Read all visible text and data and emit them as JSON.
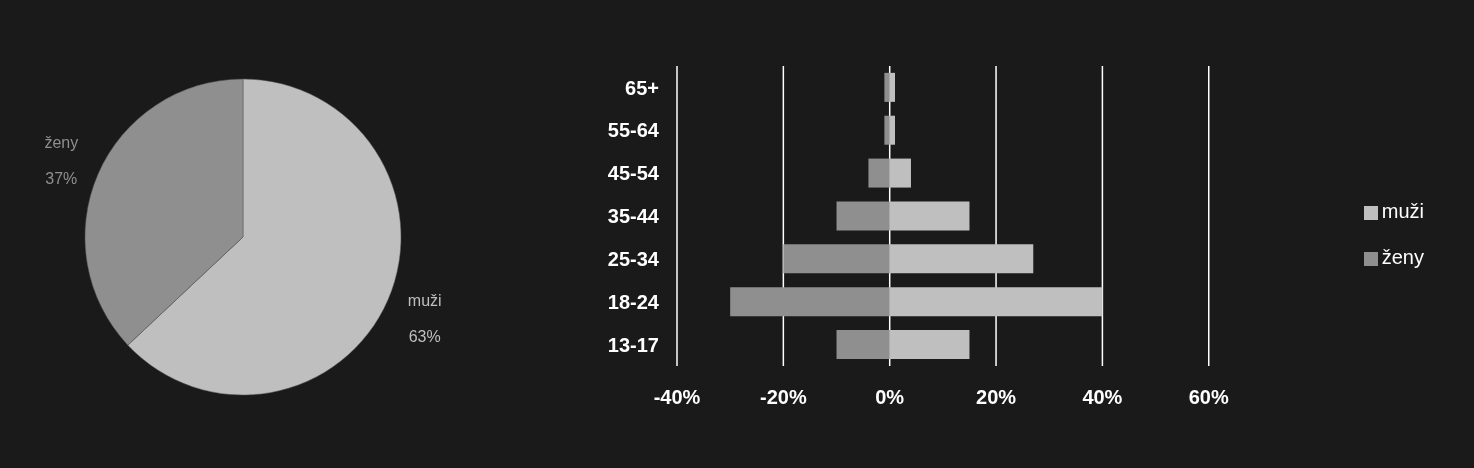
{
  "chart_data": [
    {
      "type": "pie",
      "categories": [
        "muži",
        "ženy"
      ],
      "values": [
        63,
        37
      ],
      "colors": [
        "#bfbfbf",
        "#8f8f8f"
      ],
      "value_labels": [
        "63%",
        "37%"
      ]
    },
    {
      "type": "bar",
      "orientation": "horizontal",
      "stacked": true,
      "categories": [
        "65+",
        "55-64",
        "45-54",
        "35-44",
        "25-34",
        "18-24",
        "13-17"
      ],
      "series": [
        {
          "name": "muži",
          "color": "#bfbfbf",
          "values": [
            1,
            1,
            4,
            15,
            27,
            40,
            15
          ]
        },
        {
          "name": "ženy",
          "color": "#8f8f8f",
          "values": [
            -1,
            -1,
            -4,
            -10,
            -20,
            -30,
            -10
          ]
        }
      ],
      "xlim": [
        -40,
        60
      ],
      "xticks": [
        {
          "value": -40,
          "label": "-40%"
        },
        {
          "value": -20,
          "label": "-20%"
        },
        {
          "value": 0,
          "label": "0%"
        },
        {
          "value": 20,
          "label": "20%"
        },
        {
          "value": 40,
          "label": "40%"
        },
        {
          "value": 60,
          "label": "60%"
        }
      ],
      "grid": "x",
      "legend": "right"
    }
  ]
}
